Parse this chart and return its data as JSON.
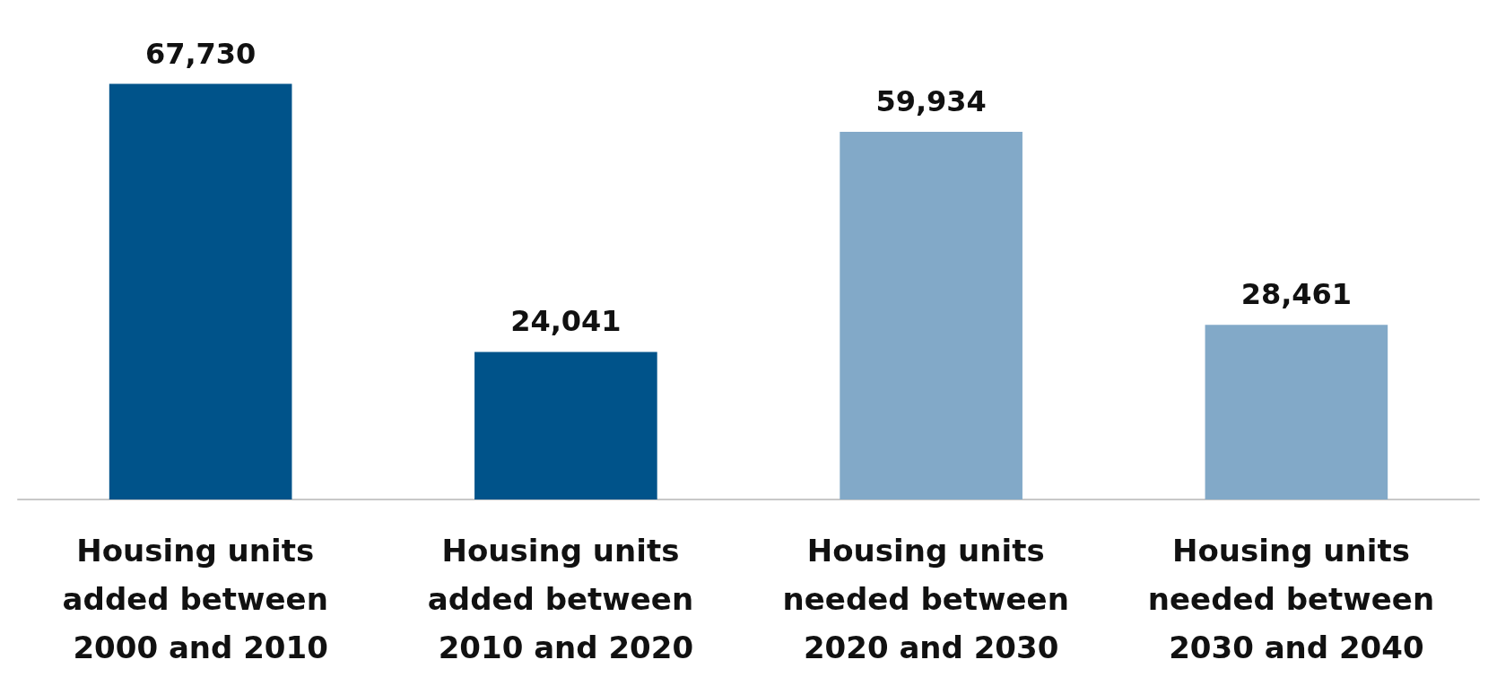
{
  "chart_data": {
    "type": "bar",
    "categories": [
      "Housing units added between 2000 and 2010",
      "Housing units added between 2010 and 2020",
      "Housing units needed between 2020 and 2030",
      "Housing units needed between 2030 and 2040"
    ],
    "values": [
      67730,
      24041,
      59934,
      28461
    ],
    "value_labels": [
      "67,730",
      "24,041",
      "59,934",
      "28,461"
    ],
    "colors": [
      "#00538a",
      "#00538a",
      "#82a9c8",
      "#82a9c8"
    ]
  }
}
